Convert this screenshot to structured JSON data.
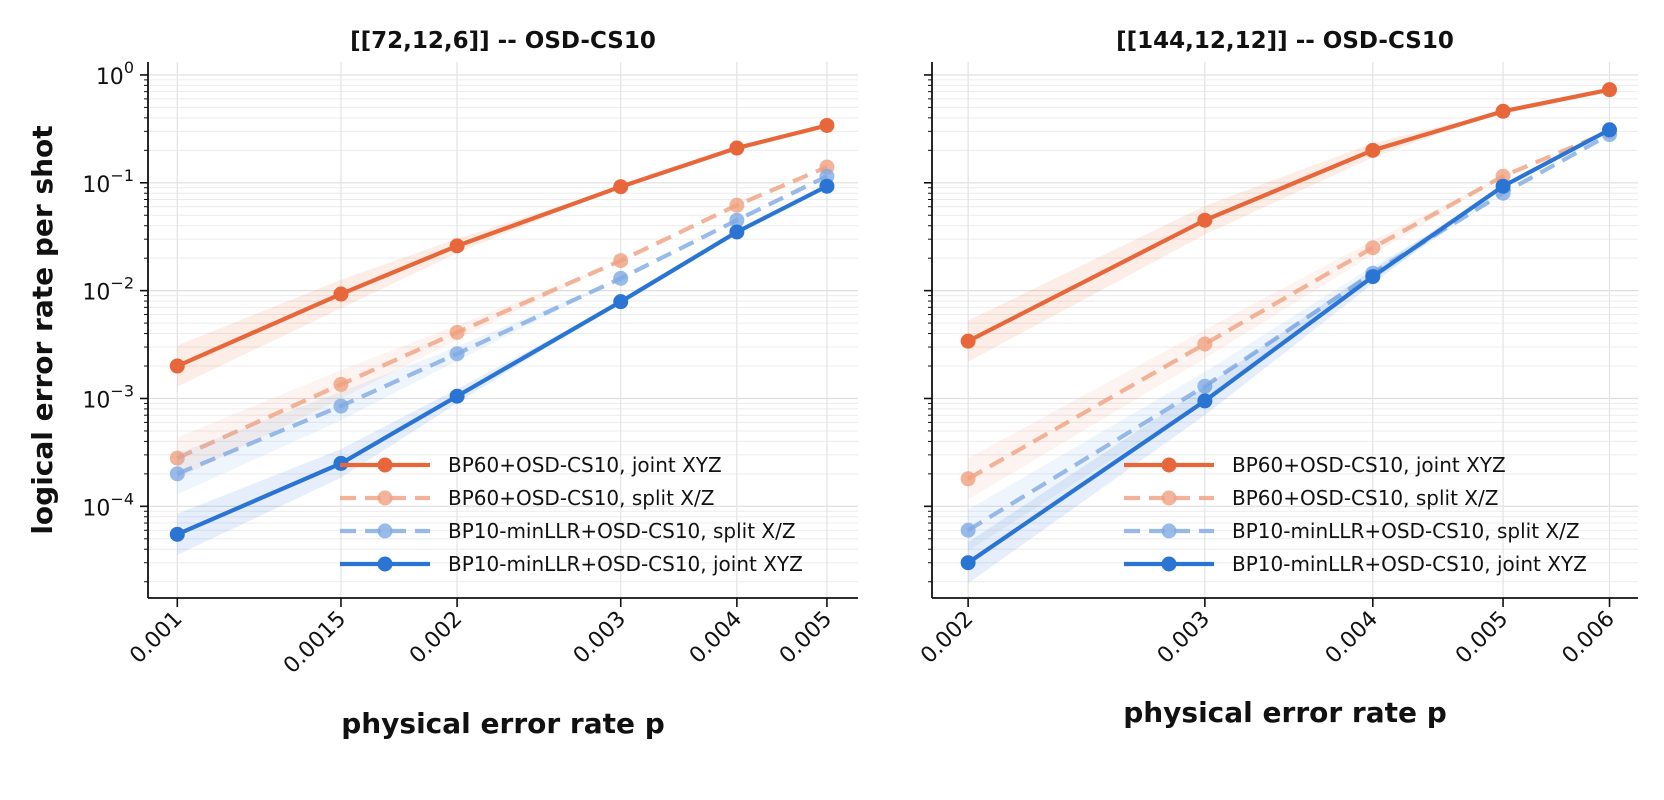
{
  "chart_data": [
    {
      "type": "line",
      "title": "[[72,12,6]] -- OSD-CS10",
      "xlabel": "physical error rate p",
      "ylabel": "logical error rate per shot",
      "xscale": "log",
      "yscale": "log",
      "grid": true,
      "legend": "bottom-right",
      "x": [
        0.001,
        0.0015,
        0.002,
        0.003,
        0.004,
        0.005
      ],
      "x_tick_labels": [
        "0.001",
        "0.0015",
        "0.002",
        "0.003",
        "0.004",
        "0.005"
      ],
      "y_tick_labels": [
        {
          "base": "10",
          "exp": "0"
        },
        {
          "base": "10",
          "exp": "−1"
        },
        {
          "base": "10",
          "exp": "−2"
        },
        {
          "base": "10",
          "exp": "−3"
        },
        {
          "base": "10",
          "exp": "−4"
        }
      ],
      "series": [
        {
          "name": "BP60+OSD-CS10, joint XYZ",
          "color": "#E8673A",
          "dash": "solid",
          "alpha": 1.0,
          "values": [
            0.002,
            0.0093,
            0.026,
            0.092,
            0.21,
            0.34
          ]
        },
        {
          "name": "BP60+OSD-CS10, split X/Z",
          "color": "#F0A080",
          "dash": "dashed",
          "alpha": 0.8,
          "values": [
            0.00028,
            0.00135,
            0.0041,
            0.019,
            0.062,
            0.14
          ]
        },
        {
          "name": "BP10-minLLR+OSD-CS10, split X/Z",
          "color": "#7FAAE3",
          "dash": "dashed",
          "alpha": 0.8,
          "values": [
            0.0002,
            0.00085,
            0.0026,
            0.013,
            0.045,
            0.115
          ]
        },
        {
          "name": "BP10-minLLR+OSD-CS10, joint XYZ",
          "color": "#2A75D3",
          "dash": "solid",
          "alpha": 1.0,
          "values": [
            5.5e-05,
            0.00025,
            0.00105,
            0.0079,
            0.035,
            0.093
          ]
        }
      ]
    },
    {
      "type": "line",
      "title": "[[144,12,12]] -- OSD-CS10",
      "xlabel": "physical error rate p",
      "ylabel": "",
      "xscale": "log",
      "yscale": "log",
      "grid": true,
      "legend": "bottom-right",
      "x": [
        0.002,
        0.003,
        0.004,
        0.005,
        0.006
      ],
      "x_tick_labels": [
        "0.002",
        "0.003",
        "0.004",
        "0.005",
        "0.006"
      ],
      "series": [
        {
          "name": "BP60+OSD-CS10, joint XYZ",
          "color": "#E8673A",
          "dash": "solid",
          "alpha": 1.0,
          "values": [
            0.0034,
            0.045,
            0.2,
            0.46,
            0.73
          ]
        },
        {
          "name": "BP60+OSD-CS10, split X/Z",
          "color": "#F0A080",
          "dash": "dashed",
          "alpha": 0.8,
          "values": [
            0.00018,
            0.0032,
            0.025,
            0.115,
            0.3
          ]
        },
        {
          "name": "BP10-minLLR+OSD-CS10, split X/Z",
          "color": "#7FAAE3",
          "dash": "dashed",
          "alpha": 0.8,
          "values": [
            6e-05,
            0.0013,
            0.0145,
            0.08,
            0.28
          ]
        },
        {
          "name": "BP10-minLLR+OSD-CS10, joint XYZ",
          "color": "#2A75D3",
          "dash": "solid",
          "alpha": 1.0,
          "values": [
            3e-05,
            0.00095,
            0.0135,
            0.093,
            0.31
          ]
        }
      ]
    }
  ]
}
